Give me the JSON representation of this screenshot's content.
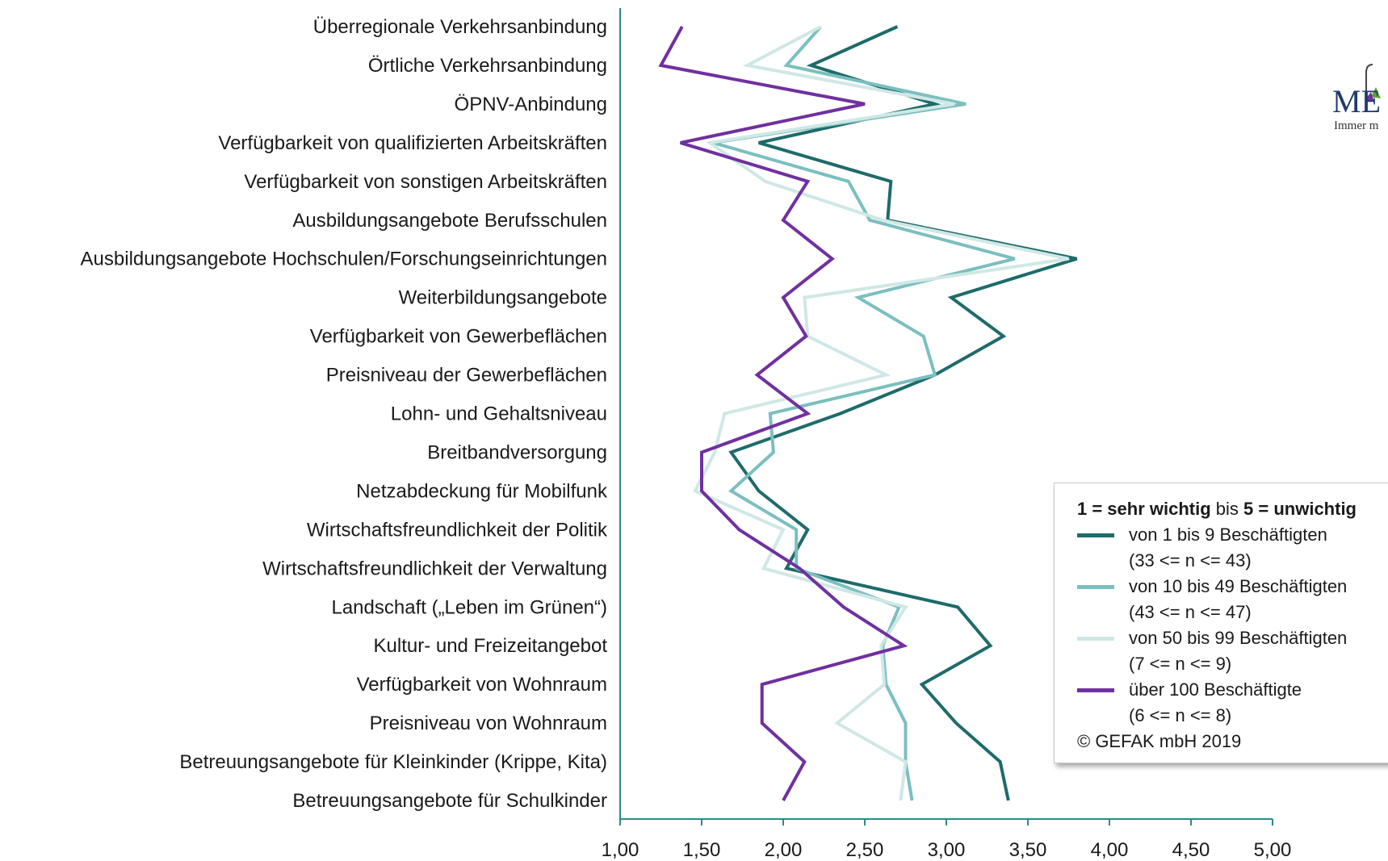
{
  "chart_data": {
    "type": "line",
    "orientation": "horizontal",
    "categories": [
      "Überregionale Verkehrsanbindung",
      "Örtliche Verkehrsanbindung",
      "ÖPNV-Anbindung",
      "Verfügbarkeit von qualifizierten Arbeitskräften",
      "Verfügbarkeit von sonstigen Arbeitskräften",
      "Ausbildungsangebote Berufsschulen",
      "Ausbildungsangebote Hochschulen/Forschungseinrichtungen",
      "Weiterbildungsangebote",
      "Verfügbarkeit von Gewerbeflächen",
      "Preisniveau der Gewerbeflächen",
      "Lohn- und Gehaltsniveau",
      "Breitbandversorgung",
      "Netzabdeckung für Mobilfunk",
      "Wirtschaftsfreundlichkeit der Politik",
      "Wirtschaftsfreundlichkeit der Verwaltung",
      "Landschaft („Leben im Grünen“)",
      "Kultur- und Freizeitangebot",
      "Verfügbarkeit von Wohnraum",
      "Preisniveau von Wohnraum",
      "Betreuungsangebote für Kleinkinder (Krippe, Kita)",
      "Betreuungsangebote für Schulkinder"
    ],
    "xlim": [
      1.0,
      5.0
    ],
    "xticks": [
      "1,00",
      "1,50",
      "2,00",
      "2,50",
      "3,00",
      "3,50",
      "4,00",
      "4,50",
      "5,00"
    ],
    "series": [
      {
        "name": "von 1 bis 9 Beschäftigten",
        "note": "(33 <= n <= 43)",
        "color": "#1e6b6b",
        "values": [
          2.7,
          2.17,
          2.93,
          1.85,
          2.66,
          2.64,
          3.8,
          3.03,
          3.35,
          2.93,
          2.35,
          1.68,
          1.85,
          2.15,
          2.02,
          3.07,
          3.27,
          2.85,
          3.06,
          3.33,
          3.38
        ]
      },
      {
        "name": "von 10 bis 49 Beschäftigten",
        "note": "(43 <= n <= 47)",
        "color": "#7bbfc0",
        "values": [
          2.23,
          2.02,
          3.12,
          1.57,
          2.4,
          2.53,
          3.42,
          2.46,
          2.86,
          2.93,
          1.92,
          1.94,
          1.68,
          2.08,
          2.08,
          2.71,
          2.61,
          2.63,
          2.75,
          2.75,
          2.79
        ]
      },
      {
        "name": "von 50 bis 99 Beschäftigten",
        "note": "(7 <= n <= 9)",
        "color": "#cfe8e6",
        "values": [
          2.23,
          1.78,
          3.05,
          1.55,
          1.89,
          2.61,
          3.75,
          2.13,
          2.15,
          2.63,
          1.64,
          1.58,
          1.46,
          2.0,
          1.88,
          2.75,
          2.6,
          2.62,
          2.33,
          2.75,
          2.72
        ]
      },
      {
        "name": "über 100 Beschäftigte",
        "note": "(6 <= n <= 8)",
        "color": "#7030a0",
        "values": [
          1.38,
          1.25,
          2.5,
          1.37,
          2.15,
          2.0,
          2.3,
          2.0,
          2.14,
          1.84,
          2.15,
          1.5,
          1.5,
          1.73,
          2.1,
          2.37,
          2.74,
          1.87,
          1.87,
          2.13,
          2.0
        ]
      }
    ],
    "legend": {
      "title_bold_1": "1 = sehr wichtig",
      "title_mid": " bis ",
      "title_bold_2": "5 = unwichtig",
      "copyright": "© GEFAK mbH 2019",
      "placement": "bottom-right"
    },
    "grid": false
  },
  "logo": {
    "text": "ME",
    "subtext": "Immer m"
  }
}
